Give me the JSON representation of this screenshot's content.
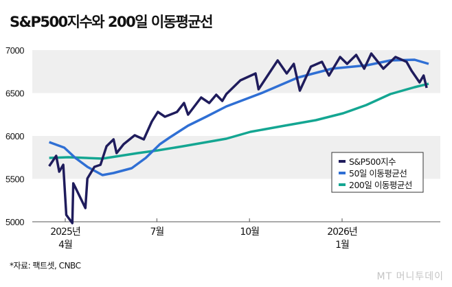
{
  "chart_data": {
    "type": "line",
    "title": "S&P500지수와 200일 이동평균선",
    "xlabel": "",
    "ylabel": "",
    "ylim": [
      5000,
      7000
    ],
    "yticks": [
      5000,
      5500,
      6000,
      6500,
      7000
    ],
    "ytick_labels": [
      "5000",
      "5500",
      "6000",
      "6500",
      "7000"
    ],
    "xticks": [
      {
        "date": "2025-04-01",
        "label": [
          "2025년",
          "4월"
        ]
      },
      {
        "date": "2025-07-01",
        "label": [
          "7월"
        ]
      },
      {
        "date": "2025-10-01",
        "label": [
          "10월"
        ]
      },
      {
        "date": "2026-01-01",
        "label": [
          "2026년",
          "1월"
        ]
      }
    ],
    "bands": [
      [
        5500,
        6000
      ],
      [
        6500,
        7000
      ]
    ],
    "legend_position": "bottom-right",
    "series": [
      {
        "name": "S&P500지수",
        "color": "#1f1c5c",
        "points": [
          [
            "2025-03-16",
            5648
          ],
          [
            "2025-03-23",
            5768
          ],
          [
            "2025-03-26",
            5584
          ],
          [
            "2025-03-30",
            5664
          ],
          [
            "2025-04-02",
            5080
          ],
          [
            "2025-04-08",
            4984
          ],
          [
            "2025-04-09",
            5448
          ],
          [
            "2025-04-11",
            5400
          ],
          [
            "2025-04-21",
            5160
          ],
          [
            "2025-04-23",
            5504
          ],
          [
            "2025-04-30",
            5640
          ],
          [
            "2025-05-06",
            5664
          ],
          [
            "2025-05-12",
            5880
          ],
          [
            "2025-05-19",
            5960
          ],
          [
            "2025-05-22",
            5800
          ],
          [
            "2025-05-29",
            5904
          ],
          [
            "2025-06-09",
            6008
          ],
          [
            "2025-06-18",
            5960
          ],
          [
            "2025-06-26",
            6168
          ],
          [
            "2025-07-02",
            6280
          ],
          [
            "2025-07-09",
            6224
          ],
          [
            "2025-07-21",
            6280
          ],
          [
            "2025-07-28",
            6384
          ],
          [
            "2025-08-01",
            6248
          ],
          [
            "2025-08-14",
            6448
          ],
          [
            "2025-08-22",
            6384
          ],
          [
            "2025-08-29",
            6480
          ],
          [
            "2025-09-04",
            6408
          ],
          [
            "2025-09-08",
            6488
          ],
          [
            "2025-09-22",
            6648
          ],
          [
            "2025-10-07",
            6728
          ],
          [
            "2025-10-10",
            6544
          ],
          [
            "2025-10-29",
            6880
          ],
          [
            "2025-11-07",
            6728
          ],
          [
            "2025-11-14",
            6840
          ],
          [
            "2025-11-20",
            6528
          ],
          [
            "2025-12-01",
            6808
          ],
          [
            "2025-12-12",
            6864
          ],
          [
            "2025-12-19",
            6704
          ],
          [
            "2025-12-30",
            6920
          ],
          [
            "2026-01-06",
            6840
          ],
          [
            "2026-01-15",
            6944
          ],
          [
            "2026-01-23",
            6784
          ],
          [
            "2026-01-30",
            6960
          ],
          [
            "2026-02-11",
            6784
          ],
          [
            "2026-02-23",
            6920
          ],
          [
            "2026-03-06",
            6864
          ],
          [
            "2026-03-11",
            6760
          ],
          [
            "2026-03-19",
            6624
          ],
          [
            "2026-03-23",
            6704
          ],
          [
            "2026-03-26",
            6560
          ]
        ]
      },
      {
        "name": "50일 이동평균선",
        "color": "#2f6fd4",
        "points": [
          [
            "2025-03-16",
            5928
          ],
          [
            "2025-03-31",
            5864
          ],
          [
            "2025-04-11",
            5744
          ],
          [
            "2025-04-23",
            5640
          ],
          [
            "2025-05-08",
            5544
          ],
          [
            "2025-05-19",
            5568
          ],
          [
            "2025-06-06",
            5624
          ],
          [
            "2025-06-20",
            5744
          ],
          [
            "2025-07-04",
            5904
          ],
          [
            "2025-07-14",
            5984
          ],
          [
            "2025-08-01",
            6120
          ],
          [
            "2025-08-19",
            6224
          ],
          [
            "2025-09-08",
            6344
          ],
          [
            "2025-10-14",
            6504
          ],
          [
            "2025-11-18",
            6680
          ],
          [
            "2025-12-22",
            6784
          ],
          [
            "2026-01-26",
            6824
          ],
          [
            "2026-02-18",
            6880
          ],
          [
            "2026-03-14",
            6888
          ],
          [
            "2026-03-28",
            6840
          ]
        ]
      },
      {
        "name": "200일 이동평균선",
        "color": "#14a692",
        "points": [
          [
            "2025-03-16",
            5744
          ],
          [
            "2025-04-04",
            5752
          ],
          [
            "2025-05-08",
            5736
          ],
          [
            "2025-06-12",
            5800
          ],
          [
            "2025-07-02",
            5832
          ],
          [
            "2025-07-27",
            5880
          ],
          [
            "2025-09-08",
            5968
          ],
          [
            "2025-10-02",
            6048
          ],
          [
            "2025-11-05",
            6120
          ],
          [
            "2025-12-06",
            6184
          ],
          [
            "2026-01-02",
            6264
          ],
          [
            "2026-01-25",
            6360
          ],
          [
            "2026-02-18",
            6488
          ],
          [
            "2026-03-14",
            6568
          ],
          [
            "2026-03-28",
            6608
          ]
        ]
      }
    ]
  },
  "source": "*자료: 팩트셋, CNBC",
  "watermark": "MT 머니투데이"
}
